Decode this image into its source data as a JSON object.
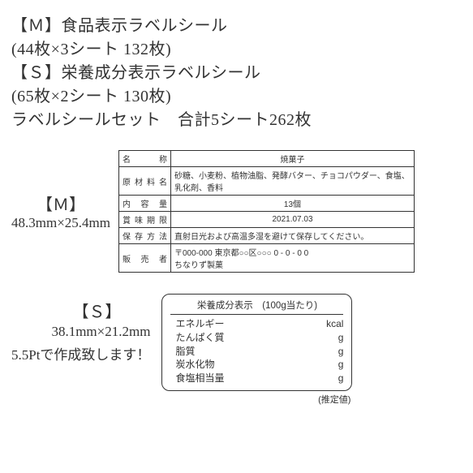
{
  "header": {
    "l1": "【Ｍ】食品表示ラベルシール",
    "l2": "(44枚×3シート 132枚)",
    "l3": "【Ｓ】栄養成分表示ラベルシール",
    "l4": "(65枚×2シート 130枚)",
    "l5": "ラベルシールセット　合計5シート262枚"
  },
  "m": {
    "bracket": "【Ｍ】",
    "dim": "48.3mm×25.4mm",
    "rows": [
      {
        "label": "名　　称",
        "value": "焼菓子",
        "align": "center"
      },
      {
        "label": "原 材 料 名",
        "value": "砂糖、小麦粉、植物油脂、発酵バター、チョコパウダー、食塩、乳化剤、香料",
        "align": "left"
      },
      {
        "label": "内 容 量",
        "value": "13個",
        "align": "center"
      },
      {
        "label": "賞 味 期 限",
        "value": "2021.07.03",
        "align": "center"
      },
      {
        "label": "保 存 方 法",
        "value": "直射日光および高温多湿を避けて保存してください。",
        "align": "left"
      },
      {
        "label": "販 売 者",
        "value": "〒000-000 東京都○○区○○○ 0 - 0 - 0 0\nちなりず製菓",
        "align": "left"
      }
    ]
  },
  "s": {
    "bracket": "【Ｓ】",
    "dim": "38.1mm×21.2mm",
    "note": "5.5Ptで作成致します！",
    "nutri_title": "栄養成分表示　(100g当たり)",
    "nutri_rows": [
      {
        "k": "エネルギー",
        "u": "kcal"
      },
      {
        "k": "たんぱく質",
        "u": "g"
      },
      {
        "k": "脂質",
        "u": "g"
      },
      {
        "k": "炭水化物",
        "u": "g"
      },
      {
        "k": "食塩相当量",
        "u": "g"
      }
    ],
    "estimate": "(推定値)"
  }
}
